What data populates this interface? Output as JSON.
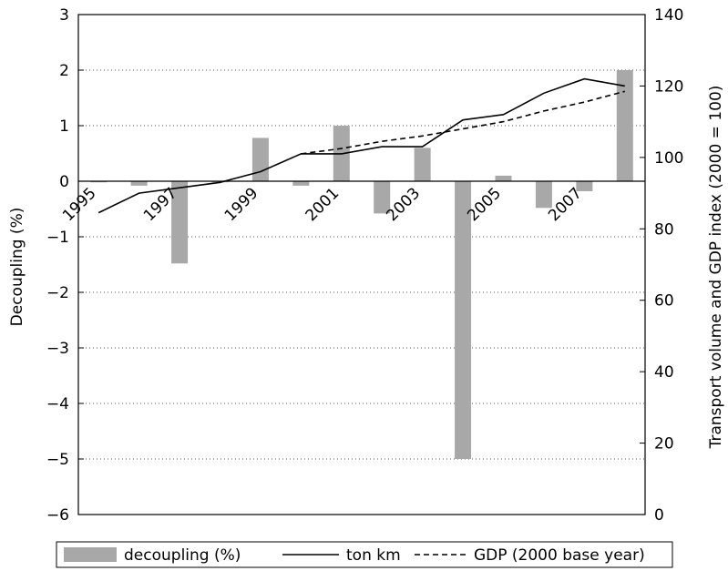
{
  "chart_data": {
    "type": "bar+line",
    "title": "",
    "x": [
      "1995",
      "1996",
      "1997",
      "1998",
      "1999",
      "2000",
      "2001",
      "2002",
      "2003",
      "2004",
      "2005",
      "2006",
      "2007",
      "2008"
    ],
    "xtick_labels": [
      "1995",
      "1997",
      "1999",
      "2001",
      "2003",
      "2005",
      "2007"
    ],
    "left_axis": {
      "label": "Decoupling (%)",
      "ylim": [
        -6,
        3
      ],
      "ticks": [
        "3",
        "2",
        "1",
        "0",
        "−1",
        "−2",
        "−3",
        "−4",
        "−5",
        "−6"
      ],
      "tick_values": [
        3,
        2,
        1,
        0,
        -1,
        -2,
        -3,
        -4,
        -5,
        -6
      ]
    },
    "right_axis": {
      "label": "Transport volume and GDP index (2000 = 100)",
      "ylim": [
        0,
        140
      ],
      "ticks": [
        "140",
        "120",
        "100",
        "80",
        "60",
        "40",
        "20",
        "0"
      ],
      "tick_values": [
        140,
        120,
        100,
        80,
        60,
        40,
        20,
        0
      ]
    },
    "grid": "horizontal dotted",
    "legend_position": "bottom",
    "series": [
      {
        "name": "decoupling (%)",
        "kind": "bar",
        "axis": "left",
        "color": "#a8a8a8",
        "values": [
          -0.02,
          -0.08,
          -1.48,
          0.0,
          0.78,
          -0.08,
          1.0,
          -0.58,
          0.6,
          -5.0,
          0.1,
          -0.48,
          -0.18,
          2.0
        ]
      },
      {
        "name": "ton km",
        "kind": "line",
        "style": "solid",
        "axis": "right",
        "color": "#000000",
        "values": [
          84.5,
          90,
          91.5,
          93,
          96,
          101,
          101,
          103,
          103,
          110.5,
          112,
          118,
          122,
          120
        ]
      },
      {
        "name": "GDP (2000 base year)",
        "kind": "line",
        "style": "dashed",
        "axis": "right",
        "color": "#000000",
        "start_index": 5,
        "values": [
          null,
          null,
          null,
          null,
          null,
          101,
          102.5,
          104.5,
          106,
          108,
          110,
          113,
          115.5,
          118.5
        ]
      }
    ],
    "legend": {
      "items": [
        "decoupling (%)",
        "ton km",
        "GDP (2000 base year)"
      ]
    }
  }
}
